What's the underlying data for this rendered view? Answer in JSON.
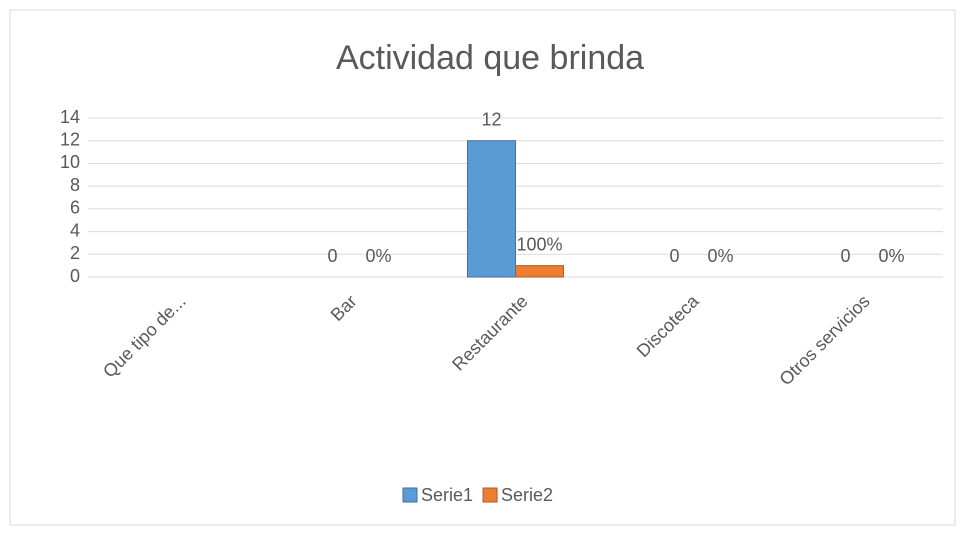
{
  "chart_data": {
    "type": "bar",
    "title": "Actividad que brinda",
    "categories": [
      "Que tipo de...",
      "Bar",
      "Restaurante",
      "Discoteca",
      "Otros servicios"
    ],
    "series": [
      {
        "name": "Serie1",
        "color": "#5b9bd5",
        "values": [
          null,
          0,
          12,
          0,
          0
        ]
      },
      {
        "name": "Serie2",
        "color": "#ed7d31",
        "values": [
          null,
          0,
          1,
          0,
          0
        ],
        "value_labels": [
          null,
          "0%",
          "100%",
          "0%",
          "0%"
        ]
      }
    ],
    "ylim": [
      0,
      14
    ],
    "yticks": [
      0,
      2,
      4,
      6,
      8,
      10,
      12,
      14
    ],
    "grid": true,
    "legend": "bottom"
  }
}
